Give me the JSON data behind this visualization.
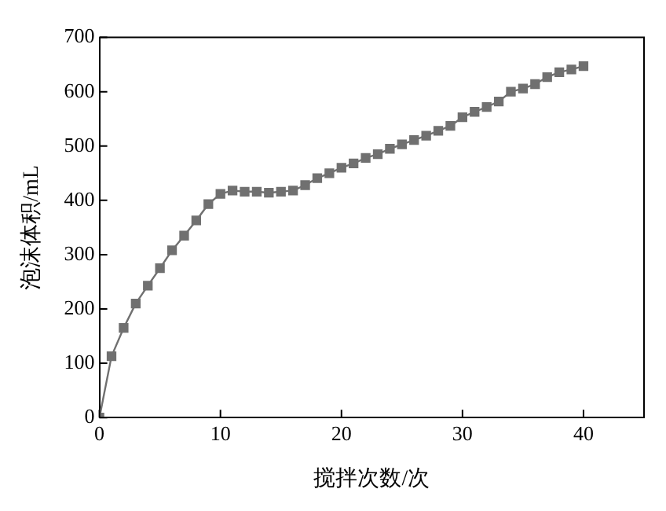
{
  "chart_data": {
    "type": "line",
    "xlabel": "搅拌次数/次",
    "ylabel": "泡沫体积/mL",
    "x": [
      0,
      1,
      2,
      3,
      4,
      5,
      6,
      7,
      8,
      9,
      10,
      11,
      12,
      13,
      14,
      15,
      16,
      17,
      18,
      19,
      20,
      21,
      22,
      23,
      24,
      25,
      26,
      27,
      28,
      29,
      30,
      31,
      32,
      33,
      34,
      35,
      36,
      37,
      38,
      39,
      40
    ],
    "series": [
      {
        "color": "#707070",
        "values": [
          0,
          113,
          165,
          210,
          243,
          275,
          308,
          335,
          363,
          393,
          412,
          418,
          416,
          416,
          414,
          416,
          418,
          428,
          441,
          450,
          460,
          468,
          478,
          485,
          495,
          503,
          511,
          519,
          528,
          537,
          553,
          563,
          572,
          582,
          600,
          606,
          614,
          627,
          636,
          641,
          647
        ]
      }
    ],
    "xlim": [
      0,
      45
    ],
    "xticks": [
      0,
      10,
      20,
      30,
      40
    ],
    "ylim": [
      0,
      700
    ],
    "yticks": [
      0,
      100,
      200,
      300,
      400,
      500,
      600,
      700
    ],
    "grid": false,
    "legend": false,
    "marker": "square",
    "line_style": "solid"
  }
}
